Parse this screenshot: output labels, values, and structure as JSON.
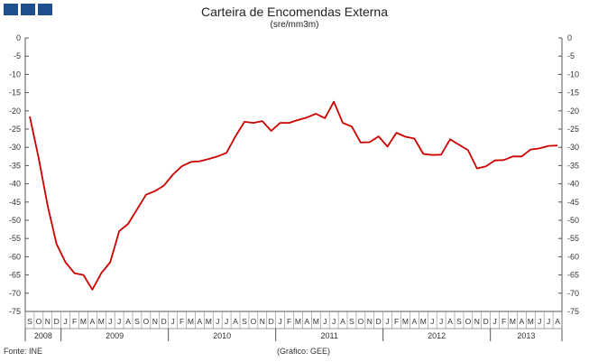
{
  "logo": {
    "icon": "three-blue-squares-logo",
    "color": "#1f4f8f"
  },
  "footer": {
    "source": "Fonte: INE",
    "credit": "(Gráfico: GEE)"
  },
  "chart_data": {
    "type": "line",
    "title": "Carteira de Encomendas Externa",
    "subtitle": "(sre/mm3m)",
    "ylim": [
      -75,
      0
    ],
    "yticks": [
      0,
      -5,
      -10,
      -15,
      -20,
      -25,
      -30,
      -35,
      -40,
      -45,
      -50,
      -55,
      -60,
      -65,
      -70,
      -75
    ],
    "y_axis_both_sides": true,
    "grid": false,
    "line_color": "#cc0000",
    "month_labels": [
      "S",
      "O",
      "N",
      "D",
      "J",
      "F",
      "M",
      "A",
      "M",
      "J",
      "J",
      "A",
      "S",
      "O",
      "N",
      "D",
      "J",
      "F",
      "M",
      "A",
      "M",
      "J",
      "J",
      "A",
      "S",
      "O",
      "N",
      "D",
      "J",
      "F",
      "M",
      "A",
      "M",
      "J",
      "J",
      "A",
      "S",
      "O",
      "N",
      "D",
      "J",
      "F",
      "M",
      "A",
      "M",
      "J",
      "J",
      "A",
      "S",
      "O",
      "N",
      "D",
      "J",
      "F",
      "M",
      "A",
      "M",
      "J",
      "J",
      "A"
    ],
    "year_labels": [
      {
        "label": "2008",
        "start": 0,
        "count": 4
      },
      {
        "label": "2009",
        "start": 4,
        "count": 12
      },
      {
        "label": "2010",
        "start": 16,
        "count": 12
      },
      {
        "label": "2011",
        "start": 28,
        "count": 12
      },
      {
        "label": "2012",
        "start": 40,
        "count": 12
      },
      {
        "label": "2013",
        "start": 52,
        "count": 8
      }
    ],
    "series": [
      {
        "values": [
          -21.5,
          -33,
          -46,
          -56.5,
          -61.5,
          -64.5,
          -65,
          -69,
          -64.5,
          -61.5,
          -53,
          -51,
          -47,
          -43,
          -42,
          -40.5,
          -37.5,
          -35.2,
          -34,
          -33.8,
          -33.2,
          -32.5,
          -31.5,
          -27,
          -23,
          -23.3,
          -22.8,
          -25.5,
          -23.3,
          -23.3,
          -22.5,
          -21.8,
          -20.8,
          -22,
          -17.5,
          -23.3,
          -24.3,
          -28.7,
          -28.6,
          -27,
          -29.8,
          -26,
          -27.1,
          -27.6,
          -31.8,
          -32.1,
          -32,
          -27.8,
          -29.3,
          -30.8,
          -35.8,
          -35.2,
          -33.6,
          -33.5,
          -32.5,
          -32.5,
          -30.6,
          -30.3,
          -29.6,
          -29.5
        ]
      }
    ]
  }
}
